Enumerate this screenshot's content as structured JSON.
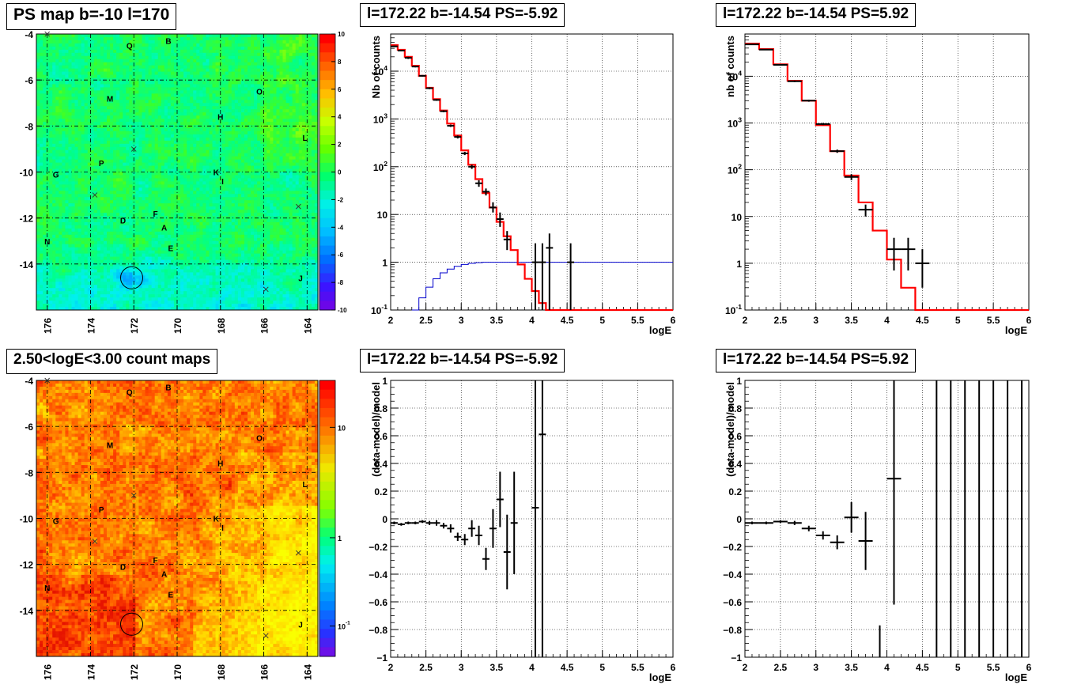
{
  "panel_titles": {
    "tl": "PS map b=-10 l=170",
    "tm": "l=172.22 b=-14.54 PS=-5.92",
    "tr": "l=172.22 b=-14.54 PS=5.92",
    "bl": "2.50<logE<3.00 count maps",
    "bm": "l=172.22 b=-14.54 PS=-5.92",
    "br": "l=172.22 b=-14.54 PS=5.92"
  },
  "chart_data": [
    {
      "id": "tl",
      "type": "heatmap",
      "title": "PS map b=-10 l=170",
      "x_ticks": [
        "176",
        "174",
        "172",
        "170",
        "168",
        "166",
        "164"
      ],
      "y_ticks": [
        "-4",
        "-6",
        "-8",
        "-10",
        "-12",
        "-14"
      ],
      "xlim": [
        176.5,
        163.5
      ],
      "ylim": [
        -16,
        -4
      ],
      "colorbar_ticks": [
        "10",
        "8",
        "6",
        "4",
        "2",
        "0",
        "-2",
        "-4",
        "-6",
        "-8",
        "-10"
      ],
      "colorbar_range": [
        -10,
        10
      ],
      "source_labels": [
        {
          "t": "Q",
          "l": 172.2,
          "b": -4.5
        },
        {
          "t": "B",
          "l": 170.4,
          "b": -4.3
        },
        {
          "t": "M",
          "l": 173.1,
          "b": -6.8
        },
        {
          "t": "O",
          "l": 166.2,
          "b": -6.5
        },
        {
          "t": "H",
          "l": 168,
          "b": -7.6
        },
        {
          "t": "L",
          "l": 164.1,
          "b": -8.5
        },
        {
          "t": "P",
          "l": 173.5,
          "b": -9.6
        },
        {
          "t": "G",
          "l": 175.6,
          "b": -10.1
        },
        {
          "t": "K",
          "l": 168.2,
          "b": -10
        },
        {
          "t": "I",
          "l": 167.9,
          "b": -10.4
        },
        {
          "t": "F",
          "l": 171,
          "b": -11.8
        },
        {
          "t": "D",
          "l": 172.5,
          "b": -12.1
        },
        {
          "t": "A",
          "l": 170.6,
          "b": -12.4
        },
        {
          "t": "E",
          "l": 170.3,
          "b": -13.3
        },
        {
          "t": "N",
          "l": 176,
          "b": -13
        },
        {
          "t": "J",
          "l": 164.3,
          "b": -14.6
        }
      ],
      "crosses": [
        {
          "l": 172,
          "b": -9
        },
        {
          "l": 173.8,
          "b": -11
        },
        {
          "l": 164.4,
          "b": -11.5
        },
        {
          "l": 165.9,
          "b": -15.1
        },
        {
          "l": 176,
          "b": -4
        }
      ],
      "circle": {
        "l": 172.1,
        "b": -14.6
      }
    },
    {
      "id": "tm",
      "type": "line",
      "title": "l=172.22 b=-14.54 PS=-5.92",
      "xlabel": "logE",
      "ylabel": "Nb of counts",
      "log_y": true,
      "xlim": [
        2,
        6
      ],
      "ylim": [
        0.1,
        60000
      ],
      "x_ticks": [
        "2",
        "2.5",
        "3",
        "3.5",
        "4",
        "4.5",
        "5",
        "5.5",
        "6"
      ],
      "y_ticks": [
        {
          "v": 0.1,
          "t": "10^-1"
        },
        {
          "v": 1,
          "t": "1"
        },
        {
          "v": 10,
          "t": "10"
        },
        {
          "v": 100,
          "t": "10^2"
        },
        {
          "v": 1000,
          "t": "10^3"
        },
        {
          "v": 10000,
          "t": "10^4"
        }
      ],
      "bin_edges": [
        2,
        2.1,
        2.2,
        2.3,
        2.4,
        2.5,
        2.6,
        2.7,
        2.8,
        2.9,
        3,
        3.1,
        3.2,
        3.3,
        3.4,
        3.5,
        3.6,
        3.7,
        3.8,
        3.9,
        4,
        4.1,
        4.2,
        4.3,
        4.4,
        4.5,
        4.6,
        6
      ],
      "model": [
        35000,
        28000,
        20000,
        13000,
        8000,
        4500,
        2600,
        1500,
        800,
        450,
        220,
        110,
        55,
        28,
        14,
        7,
        3.5,
        1.8,
        0.9,
        0.45,
        0.25,
        0.14,
        0.1,
        0.1,
        0.1,
        0.1,
        0.1
      ],
      "data_points": [
        {
          "x": 2.05,
          "y": 33000,
          "lo": 32000,
          "hi": 34000
        },
        {
          "x": 2.15,
          "y": 27000,
          "lo": 26000,
          "hi": 28000
        },
        {
          "x": 2.25,
          "y": 19000,
          "lo": 18000,
          "hi": 20000
        },
        {
          "x": 2.35,
          "y": 12500,
          "lo": 12000,
          "hi": 13000
        },
        {
          "x": 2.45,
          "y": 8000,
          "lo": 7700,
          "hi": 8300
        },
        {
          "x": 2.55,
          "y": 4400,
          "lo": 4200,
          "hi": 4600
        },
        {
          "x": 2.65,
          "y": 2500,
          "lo": 2400,
          "hi": 2600
        },
        {
          "x": 2.75,
          "y": 1450,
          "lo": 1380,
          "hi": 1520
        },
        {
          "x": 2.85,
          "y": 720,
          "lo": 680,
          "hi": 760
        },
        {
          "x": 2.95,
          "y": 420,
          "lo": 390,
          "hi": 450
        },
        {
          "x": 3.05,
          "y": 190,
          "lo": 175,
          "hi": 205
        },
        {
          "x": 3.15,
          "y": 100,
          "lo": 90,
          "hi": 110
        },
        {
          "x": 3.25,
          "y": 45,
          "lo": 38,
          "hi": 52
        },
        {
          "x": 3.35,
          "y": 30,
          "lo": 25,
          "hi": 35
        },
        {
          "x": 3.45,
          "y": 14,
          "lo": 11,
          "hi": 18
        },
        {
          "x": 3.55,
          "y": 8,
          "lo": 5.5,
          "hi": 11
        },
        {
          "x": 3.65,
          "y": 3,
          "lo": 1.8,
          "hi": 4.5
        },
        {
          "x": 4.05,
          "y": 1,
          "lo": 0.1,
          "hi": 2.5
        },
        {
          "x": 4.15,
          "y": 1,
          "lo": 0.1,
          "hi": 2.5
        },
        {
          "x": 4.25,
          "y": 2,
          "lo": 0.1,
          "hi": 4
        },
        {
          "x": 4.55,
          "y": 1,
          "lo": 0.1,
          "hi": 2.5
        }
      ],
      "efficiency_curve": [
        {
          "x": 2.3,
          "y": 0.1
        },
        {
          "x": 2.4,
          "y": 0.18
        },
        {
          "x": 2.5,
          "y": 0.3
        },
        {
          "x": 2.6,
          "y": 0.45
        },
        {
          "x": 2.7,
          "y": 0.6
        },
        {
          "x": 2.8,
          "y": 0.72
        },
        {
          "x": 2.9,
          "y": 0.82
        },
        {
          "x": 3.0,
          "y": 0.9
        },
        {
          "x": 3.1,
          "y": 0.95
        },
        {
          "x": 3.2,
          "y": 0.98
        },
        {
          "x": 3.3,
          "y": 1
        },
        {
          "x": 6,
          "y": 1
        }
      ],
      "colors": {
        "model": "#ff0000",
        "data": "#000000",
        "efficiency": "#0000cc"
      }
    },
    {
      "id": "tr",
      "type": "line",
      "title": "l=172.22 b=-14.54 PS=5.92",
      "xlabel": "logE",
      "ylabel": "nb of counts",
      "log_y": true,
      "xlim": [
        2,
        6
      ],
      "ylim": [
        0.1,
        80000
      ],
      "x_ticks": [
        "2",
        "2.5",
        "3",
        "3.5",
        "4",
        "4.5",
        "5",
        "5.5",
        "6"
      ],
      "y_ticks": [
        {
          "v": 0.1,
          "t": "10^-1"
        },
        {
          "v": 1,
          "t": "1"
        },
        {
          "v": 10,
          "t": "10"
        },
        {
          "v": 100,
          "t": "10^2"
        },
        {
          "v": 1000,
          "t": "10^3"
        },
        {
          "v": 10000,
          "t": "10^4"
        }
      ],
      "bin_edges": [
        2,
        2.2,
        2.4,
        2.6,
        2.8,
        3,
        3.2,
        3.4,
        3.6,
        3.8,
        4,
        4.2,
        4.4,
        4.6,
        6
      ],
      "model": [
        50000,
        38000,
        18000,
        8000,
        3000,
        900,
        250,
        75,
        20,
        5,
        1.2,
        0.3,
        0.1,
        0.1
      ],
      "data_points": [
        {
          "x": 2.1,
          "y": 48000,
          "lo": 47000,
          "hi": 49000
        },
        {
          "x": 2.3,
          "y": 37000,
          "lo": 36000,
          "hi": 38000
        },
        {
          "x": 2.5,
          "y": 17500,
          "lo": 17000,
          "hi": 18000
        },
        {
          "x": 2.7,
          "y": 7800,
          "lo": 7500,
          "hi": 8100
        },
        {
          "x": 2.9,
          "y": 3000,
          "lo": 2850,
          "hi": 3150
        },
        {
          "x": 3.1,
          "y": 950,
          "lo": 900,
          "hi": 1000
        },
        {
          "x": 3.3,
          "y": 250,
          "lo": 230,
          "hi": 270
        },
        {
          "x": 3.5,
          "y": 70,
          "lo": 60,
          "hi": 80
        },
        {
          "x": 3.7,
          "y": 14,
          "lo": 10,
          "hi": 18
        },
        {
          "x": 4.1,
          "y": 2,
          "lo": 0.7,
          "hi": 3.5
        },
        {
          "x": 4.3,
          "y": 2,
          "lo": 0.7,
          "hi": 3.5
        },
        {
          "x": 4.5,
          "y": 1,
          "lo": 0.3,
          "hi": 2
        }
      ],
      "colors": {
        "model": "#ff0000",
        "data": "#000000"
      }
    },
    {
      "id": "bl",
      "type": "heatmap",
      "title": "2.50<logE<3.00 count maps",
      "x_ticks": [
        "176",
        "174",
        "172",
        "170",
        "168",
        "166",
        "164"
      ],
      "y_ticks": [
        "-4",
        "-6",
        "-8",
        "-10",
        "-12",
        "-14"
      ],
      "xlim": [
        176.5,
        163.5
      ],
      "ylim": [
        -16,
        -4
      ],
      "colorbar_ticks": [
        {
          "t": "10",
          "f": 0.17
        },
        {
          "t": "1",
          "f": 0.57
        },
        {
          "t": "10^-1",
          "f": 0.89
        }
      ],
      "log_color": true,
      "source_labels": [
        {
          "t": "Q",
          "l": 172.2,
          "b": -4.5
        },
        {
          "t": "B",
          "l": 170.4,
          "b": -4.3
        },
        {
          "t": "M",
          "l": 173.1,
          "b": -6.8
        },
        {
          "t": "O",
          "l": 166.2,
          "b": -6.5
        },
        {
          "t": "H",
          "l": 168,
          "b": -7.6
        },
        {
          "t": "L",
          "l": 164.1,
          "b": -8.5
        },
        {
          "t": "P",
          "l": 173.5,
          "b": -9.6
        },
        {
          "t": "G",
          "l": 175.6,
          "b": -10.1
        },
        {
          "t": "K",
          "l": 168.2,
          "b": -10
        },
        {
          "t": "I",
          "l": 167.9,
          "b": -10.4
        },
        {
          "t": "F",
          "l": 171,
          "b": -11.8
        },
        {
          "t": "D",
          "l": 172.5,
          "b": -12.1
        },
        {
          "t": "A",
          "l": 170.6,
          "b": -12.4
        },
        {
          "t": "E",
          "l": 170.3,
          "b": -13.3
        },
        {
          "t": "N",
          "l": 176,
          "b": -13
        },
        {
          "t": "J",
          "l": 164.3,
          "b": -14.6
        }
      ],
      "crosses": [
        {
          "l": 172,
          "b": -9
        },
        {
          "l": 173.8,
          "b": -11
        },
        {
          "l": 164.4,
          "b": -11.5
        },
        {
          "l": 165.9,
          "b": -15.1
        },
        {
          "l": 176,
          "b": -4
        }
      ],
      "circle": {
        "l": 172.1,
        "b": -14.6
      }
    },
    {
      "id": "bm",
      "type": "scatter",
      "title": "l=172.22 b=-14.54 PS=-5.92",
      "xlabel": "logE",
      "ylabel": "(data-model)/model",
      "xlim": [
        2,
        6
      ],
      "ylim": [
        -1,
        1
      ],
      "x_ticks": [
        "2",
        "2.5",
        "3",
        "3.5",
        "4",
        "4.5",
        "5",
        "5.5",
        "6"
      ],
      "y_ticks": [
        "-1",
        "-0.8",
        "-0.6",
        "-0.4",
        "-0.2",
        "0",
        "0.2",
        "0.4",
        "0.6",
        "0.8",
        "1"
      ],
      "points": [
        {
          "x": 2.05,
          "y": -0.03,
          "e": 0.01
        },
        {
          "x": 2.15,
          "y": -0.04,
          "e": 0.01
        },
        {
          "x": 2.25,
          "y": -0.03,
          "e": 0.01
        },
        {
          "x": 2.35,
          "y": -0.03,
          "e": 0.01
        },
        {
          "x": 2.45,
          "y": -0.02,
          "e": 0.01
        },
        {
          "x": 2.55,
          "y": -0.03,
          "e": 0.015
        },
        {
          "x": 2.65,
          "y": -0.03,
          "e": 0.02
        },
        {
          "x": 2.75,
          "y": -0.05,
          "e": 0.02
        },
        {
          "x": 2.85,
          "y": -0.07,
          "e": 0.03
        },
        {
          "x": 2.95,
          "y": -0.13,
          "e": 0.03
        },
        {
          "x": 3.05,
          "y": -0.15,
          "e": 0.04
        },
        {
          "x": 3.15,
          "y": -0.07,
          "e": 0.06
        },
        {
          "x": 3.25,
          "y": -0.12,
          "e": 0.07
        },
        {
          "x": 3.35,
          "y": -0.29,
          "e": 0.08
        },
        {
          "x": 3.45,
          "y": -0.07,
          "e": 0.14
        },
        {
          "x": 3.55,
          "y": 0.14,
          "e": 0.2
        },
        {
          "x": 3.65,
          "y": -0.24,
          "e": 0.27
        },
        {
          "x": 3.75,
          "y": -0.03,
          "e": 0.37
        },
        {
          "x": 4.05,
          "y": 0.08,
          "e": 2
        },
        {
          "x": 4.15,
          "y": 0.61,
          "e": 2
        }
      ]
    },
    {
      "id": "br",
      "type": "scatter",
      "title": "l=172.22 b=-14.54 PS=5.92",
      "xlabel": "logE",
      "ylabel": "(data-model)/model",
      "xlim": [
        2,
        6
      ],
      "ylim": [
        -1,
        1
      ],
      "x_ticks": [
        "2",
        "2.5",
        "3",
        "3.5",
        "4",
        "4.5",
        "5",
        "5.5",
        "6"
      ],
      "y_ticks": [
        "-1",
        "-0.8",
        "-0.6",
        "-0.4",
        "-0.2",
        "0",
        "0.2",
        "0.4",
        "0.6",
        "0.8",
        "1"
      ],
      "points": [
        {
          "x": 2.1,
          "y": -0.03,
          "e": 0.01
        },
        {
          "x": 2.3,
          "y": -0.03,
          "e": 0.01
        },
        {
          "x": 2.5,
          "y": -0.02,
          "e": 0.01
        },
        {
          "x": 2.7,
          "y": -0.03,
          "e": 0.015
        },
        {
          "x": 2.9,
          "y": -0.07,
          "e": 0.02
        },
        {
          "x": 3.1,
          "y": -0.12,
          "e": 0.03
        },
        {
          "x": 3.3,
          "y": -0.17,
          "e": 0.05
        },
        {
          "x": 3.5,
          "y": 0.01,
          "e": 0.11
        },
        {
          "x": 3.7,
          "y": -0.16,
          "e": 0.21
        },
        {
          "x": 4.1,
          "y": 0.29,
          "e": 0.91
        }
      ],
      "full_bars": [
        4.7,
        4.9,
        5.1,
        5.3,
        5.5,
        5.7,
        5.9
      ],
      "partial_bar": {
        "x": 3.9,
        "y1": -1,
        "y2": -0.77
      }
    }
  ]
}
